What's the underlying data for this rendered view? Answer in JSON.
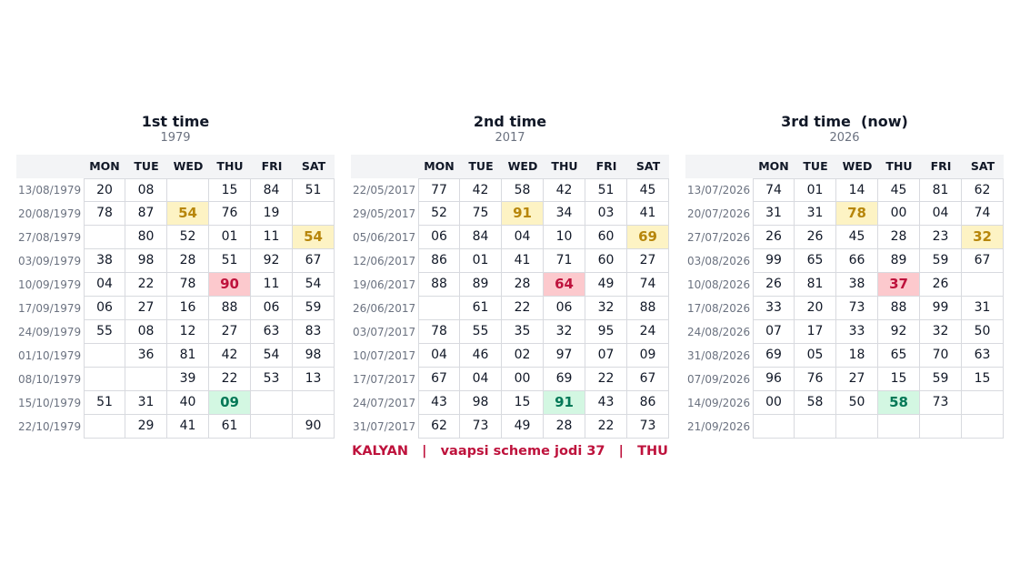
{
  "days": [
    "MON",
    "TUE",
    "WED",
    "THU",
    "FRI",
    "SAT"
  ],
  "tables": [
    {
      "title": "1st time",
      "year": "1979",
      "dates": [
        "13/08/1979",
        "20/08/1979",
        "27/08/1979",
        "03/09/1979",
        "10/09/1979",
        "17/09/1979",
        "24/09/1979",
        "01/10/1979",
        "08/10/1979",
        "15/10/1979",
        "22/10/1979"
      ],
      "rows": [
        [
          "20",
          "08",
          null,
          "15",
          "84",
          "51"
        ],
        [
          "78",
          "87",
          "54",
          "76",
          "19",
          null
        ],
        [
          null,
          "80",
          "52",
          "01",
          "11",
          "54"
        ],
        [
          "38",
          "98",
          "28",
          "51",
          "92",
          "67"
        ],
        [
          "04",
          "22",
          "78",
          "90",
          "11",
          "54"
        ],
        [
          "06",
          "27",
          "16",
          "88",
          "06",
          "59"
        ],
        [
          "55",
          "08",
          "12",
          "27",
          "63",
          "83"
        ],
        [
          null,
          "36",
          "81",
          "42",
          "54",
          "98"
        ],
        [
          null,
          null,
          "39",
          "22",
          "53",
          "13"
        ],
        [
          "51",
          "31",
          "40",
          "09",
          null,
          null
        ],
        [
          null,
          "29",
          "41",
          "61",
          null,
          "90"
        ]
      ],
      "highlight": {
        "yellow": [
          [
            1,
            2
          ],
          [
            2,
            5
          ]
        ],
        "red": [
          [
            4,
            3
          ]
        ],
        "green": [
          [
            9,
            3
          ]
        ]
      }
    },
    {
      "title": "2nd time",
      "year": "2017",
      "dates": [
        "22/05/2017",
        "29/05/2017",
        "05/06/2017",
        "12/06/2017",
        "19/06/2017",
        "26/06/2017",
        "03/07/2017",
        "10/07/2017",
        "17/07/2017",
        "24/07/2017",
        "31/07/2017"
      ],
      "rows": [
        [
          "77",
          "42",
          "58",
          "42",
          "51",
          "45"
        ],
        [
          "52",
          "75",
          "91",
          "34",
          "03",
          "41"
        ],
        [
          "06",
          "84",
          "04",
          "10",
          "60",
          "69"
        ],
        [
          "86",
          "01",
          "41",
          "71",
          "60",
          "27"
        ],
        [
          "88",
          "89",
          "28",
          "64",
          "49",
          "74"
        ],
        [
          null,
          "61",
          "22",
          "06",
          "32",
          "88"
        ],
        [
          "78",
          "55",
          "35",
          "32",
          "95",
          "24"
        ],
        [
          "04",
          "46",
          "02",
          "97",
          "07",
          "09"
        ],
        [
          "67",
          "04",
          "00",
          "69",
          "22",
          "67"
        ],
        [
          "43",
          "98",
          "15",
          "91",
          "43",
          "86"
        ],
        [
          "62",
          "73",
          "49",
          "28",
          "22",
          "73"
        ]
      ],
      "highlight": {
        "yellow": [
          [
            1,
            2
          ],
          [
            2,
            5
          ]
        ],
        "red": [
          [
            4,
            3
          ]
        ],
        "green": [
          [
            9,
            3
          ]
        ]
      }
    },
    {
      "title": "3rd time  (now)",
      "year": "2026",
      "dates": [
        "13/07/2026",
        "20/07/2026",
        "27/07/2026",
        "03/08/2026",
        "10/08/2026",
        "17/08/2026",
        "24/08/2026",
        "31/08/2026",
        "07/09/2026",
        "14/09/2026",
        "21/09/2026"
      ],
      "rows": [
        [
          "74",
          "01",
          "14",
          "45",
          "81",
          "62"
        ],
        [
          "31",
          "31",
          "78",
          "00",
          "04",
          "74"
        ],
        [
          "26",
          "26",
          "45",
          "28",
          "23",
          "32"
        ],
        [
          "99",
          "65",
          "66",
          "89",
          "59",
          "67"
        ],
        [
          "26",
          "81",
          "38",
          "37",
          "26",
          null
        ],
        [
          "33",
          "20",
          "73",
          "88",
          "99",
          "31"
        ],
        [
          "07",
          "17",
          "33",
          "92",
          "32",
          "50"
        ],
        [
          "69",
          "05",
          "18",
          "65",
          "70",
          "63"
        ],
        [
          "96",
          "76",
          "27",
          "15",
          "59",
          "15"
        ],
        [
          "00",
          "58",
          "50",
          "58",
          "73",
          null
        ],
        [
          null,
          null,
          null,
          null,
          null,
          null
        ]
      ],
      "highlight": {
        "yellow": [
          [
            1,
            2
          ],
          [
            2,
            5
          ]
        ],
        "red": [
          [
            4,
            3
          ]
        ],
        "green": [
          [
            9,
            3
          ]
        ]
      }
    }
  ],
  "footer": "KALYAN   |   vaapsi scheme jodi 37   |   THU"
}
